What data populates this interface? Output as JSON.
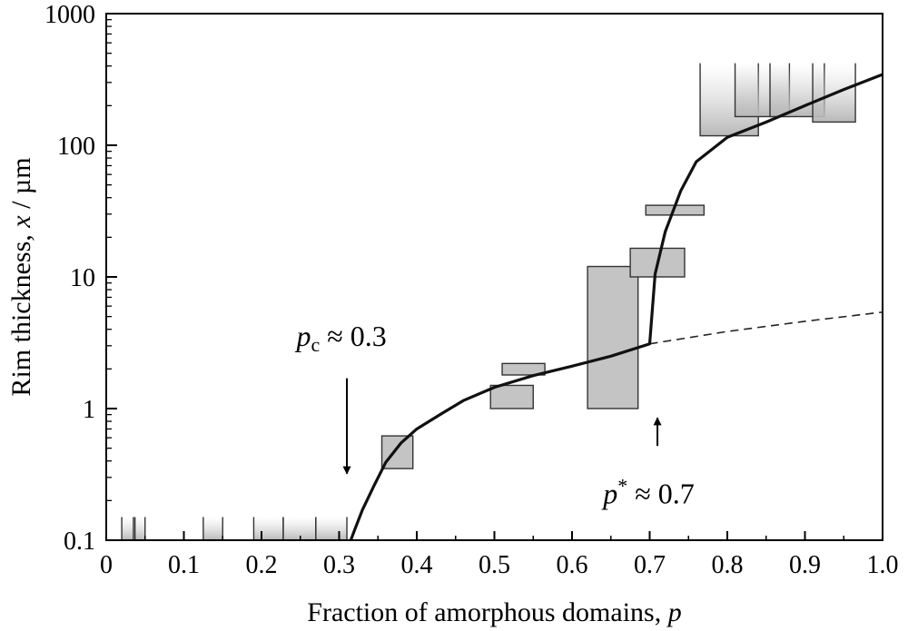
{
  "chart_data": {
    "type": "scatter",
    "xlabel": "Fraction of amorphous domains, ",
    "xlabel_var": "p",
    "ylabel": "Rim thickness, ",
    "ylabel_var": "x",
    "ylabel_unit": " / µm",
    "xlim": [
      0,
      1.0
    ],
    "ylim": [
      0.1,
      1000
    ],
    "yscale": "log",
    "grid": false,
    "x_ticks": [
      "0",
      "0.1",
      "0.2",
      "0.3",
      "0.4",
      "0.5",
      "0.6",
      "0.7",
      "0.8",
      "0.9",
      "1.0"
    ],
    "x_tick_values": [
      0,
      0.1,
      0.2,
      0.3,
      0.4,
      0.5,
      0.6,
      0.7,
      0.8,
      0.9,
      1.0
    ],
    "y_ticks": [
      "0.1",
      "1",
      "10",
      "100",
      "1000"
    ],
    "y_tick_values": [
      0.1,
      1,
      10,
      100,
      1000
    ],
    "boxes": [
      {
        "x0": 0.02,
        "x1": 0.035,
        "y0": 0.1,
        "y1": 0.15,
        "fade": true
      },
      {
        "x0": 0.037,
        "x1": 0.05,
        "y0": 0.1,
        "y1": 0.15,
        "fade": true
      },
      {
        "x0": 0.125,
        "x1": 0.15,
        "y0": 0.1,
        "y1": 0.15,
        "fade": true
      },
      {
        "x0": 0.19,
        "x1": 0.228,
        "y0": 0.1,
        "y1": 0.15,
        "fade": true
      },
      {
        "x0": 0.228,
        "x1": 0.27,
        "y0": 0.1,
        "y1": 0.15,
        "fade": true
      },
      {
        "x0": 0.27,
        "x1": 0.31,
        "y0": 0.1,
        "y1": 0.15,
        "fade": true
      },
      {
        "x0": 0.355,
        "x1": 0.395,
        "y0": 0.35,
        "y1": 0.62,
        "fade": false
      },
      {
        "x0": 0.495,
        "x1": 0.55,
        "y0": 1.0,
        "y1": 1.5,
        "fade": false
      },
      {
        "x0": 0.51,
        "x1": 0.565,
        "y0": 1.8,
        "y1": 2.2,
        "fade": false
      },
      {
        "x0": 0.62,
        "x1": 0.685,
        "y0": 1.0,
        "y1": 12,
        "fade": false
      },
      {
        "x0": 0.675,
        "x1": 0.745,
        "y0": 10,
        "y1": 16.5,
        "fade": false
      },
      {
        "x0": 0.695,
        "x1": 0.77,
        "y0": 29.5,
        "y1": 35,
        "fade": false
      },
      {
        "x0": 0.765,
        "x1": 0.84,
        "y0": 118,
        "y1": 420,
        "fade": true
      },
      {
        "x0": 0.81,
        "x1": 0.88,
        "y0": 165,
        "y1": 420,
        "fade": true
      },
      {
        "x0": 0.855,
        "x1": 0.925,
        "y0": 165,
        "y1": 420,
        "fade": true
      },
      {
        "x0": 0.91,
        "x1": 0.965,
        "y0": 150,
        "y1": 420,
        "fade": true
      }
    ],
    "fit_curve": [
      [
        0.315,
        0.1
      ],
      [
        0.32,
        0.12
      ],
      [
        0.33,
        0.17
      ],
      [
        0.345,
        0.26
      ],
      [
        0.36,
        0.39
      ],
      [
        0.38,
        0.55
      ],
      [
        0.4,
        0.7
      ],
      [
        0.43,
        0.9
      ],
      [
        0.46,
        1.15
      ],
      [
        0.5,
        1.45
      ],
      [
        0.55,
        1.78
      ],
      [
        0.6,
        2.1
      ],
      [
        0.65,
        2.5
      ],
      [
        0.7,
        3.1
      ],
      [
        0.707,
        10.5
      ],
      [
        0.72,
        22
      ],
      [
        0.74,
        45
      ],
      [
        0.76,
        75
      ],
      [
        0.8,
        115
      ],
      [
        0.85,
        150
      ],
      [
        0.9,
        200
      ],
      [
        0.95,
        265
      ],
      [
        1.0,
        345
      ]
    ],
    "extrapolation": [
      [
        0.7,
        3.1
      ],
      [
        0.8,
        3.85
      ],
      [
        0.9,
        4.6
      ],
      [
        1.0,
        5.4
      ]
    ],
    "annotations": [
      {
        "base": "p",
        "sub": "c",
        "sup": "",
        "text": " ≈ 0.3",
        "label_x": 0.245,
        "label_y": 3.0,
        "arrow_x": 0.31,
        "arrow_from_y": 1.7,
        "arrow_to_y": 0.32
      },
      {
        "base": "p",
        "sub": "",
        "sup": "*",
        "text": " ≈ 0.7",
        "label_x": 0.64,
        "label_y": 0.19,
        "arrow_x": 0.71,
        "arrow_from_y": 0.52,
        "arrow_to_y": 0.85
      }
    ]
  }
}
